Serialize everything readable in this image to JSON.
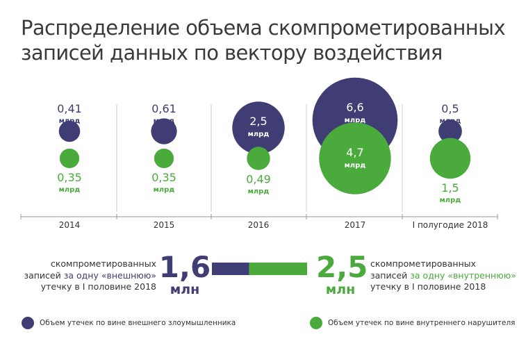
{
  "title": {
    "line1": "Распределение объема скомпрометированных",
    "line2": "записей данных по вектору воздействия"
  },
  "colors": {
    "external": "#3f3d73",
    "internal": "#4aaa3c",
    "divider": "#cfcfcf",
    "axis": "#9a9a9a"
  },
  "chart_data": {
    "type": "bubble",
    "unit": "млрд",
    "categories": [
      "2014",
      "2015",
      "2016",
      "2017",
      "I полугодие 2018"
    ],
    "series": [
      {
        "name": "Объем утечек по вине внешнего злоумышленника",
        "color": "#3f3d73",
        "values": [
          0.41,
          0.61,
          2.5,
          6.6,
          0.5
        ],
        "labels": [
          "0,41",
          "0,61",
          "2,5",
          "6,6",
          "0,5"
        ]
      },
      {
        "name": "Объем утечек по вине внутреннего нарушителя",
        "color": "#4aaa3c",
        "values": [
          0.35,
          0.35,
          0.49,
          4.7,
          1.5
        ],
        "labels": [
          "0,35",
          "0,35",
          "0,49",
          "4,7",
          "1,5"
        ]
      }
    ],
    "legend_placement": "bottom"
  },
  "comparison": {
    "external": {
      "line1": "скомпрометированных",
      "line2_pre": "записей ",
      "line2_highlight": "за одну «внешнюю»",
      "line3": "утечку в I половине 2018",
      "value": "1,6",
      "unit": "млн",
      "amount": 1.6
    },
    "internal": {
      "line1": "скомпрометированных",
      "line2_pre": "записей ",
      "line2_highlight": "за одну «внутреннюю»",
      "line3": "утечку в I половине 2018",
      "value": "2,5",
      "unit": "млн",
      "amount": 2.5
    }
  },
  "legend": {
    "external": "Объем утечек по вине внешнего злоумышленника",
    "internal": "Объем утечек по вине внутреннего нарушителя"
  }
}
